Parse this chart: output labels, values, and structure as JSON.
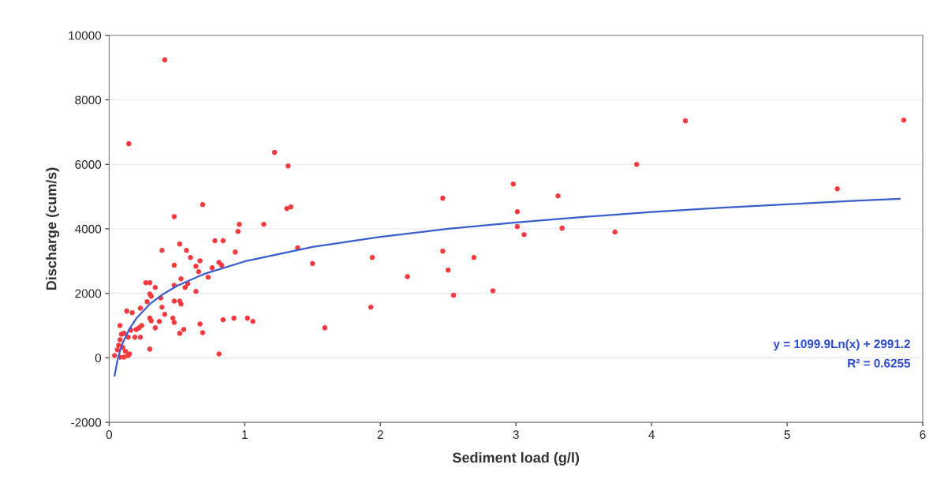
{
  "chart_data": {
    "type": "scatter",
    "xlabel": "Sediment load (g/l)",
    "ylabel": "Discharge (cum/s)",
    "xlim": [
      0,
      6
    ],
    "xticks": [
      0,
      1,
      2,
      3,
      4,
      5,
      6
    ],
    "ylim": [
      -2000,
      10000
    ],
    "yticks": [
      -2000,
      0,
      2000,
      4000,
      6000,
      8000,
      10000
    ],
    "grid": "y",
    "marker": "circle",
    "legend": false,
    "annotations": [
      "y = 1099.9Ln(x) + 2991.2",
      "R² = 0.6255"
    ],
    "series": [
      {
        "color": "#f23a3f",
        "x": [
          0.41,
          0.145,
          1.22,
          1.32,
          1.31,
          1.34,
          0.69,
          0.48,
          0.96,
          0.95,
          0.52,
          0.78,
          0.84,
          0.39,
          0.57,
          0.6,
          0.67,
          0.93,
          0.48,
          0.64,
          0.66,
          0.81,
          0.83,
          0.76,
          0.73,
          0.53,
          0.27,
          0.3,
          0.34,
          0.48,
          0.58,
          0.56,
          0.64,
          0.3,
          0.31,
          0.38,
          0.28,
          0.48,
          0.52,
          0.53,
          0.39,
          0.41,
          0.23,
          0.13,
          0.17,
          0.3,
          0.31,
          0.37,
          0.47,
          0.48,
          0.34,
          0.08,
          0.67,
          0.69,
          0.55,
          0.52,
          0.84,
          0.92,
          1.02,
          1.06,
          0.3,
          0.81,
          0.24,
          0.22,
          0.2,
          0.16,
          0.11,
          0.09,
          0.23,
          0.19,
          0.14,
          0.08,
          0.07,
          0.1,
          0.06,
          0.12,
          0.15,
          0.04,
          0.08,
          0.11,
          0.14,
          1.14,
          1.39,
          1.5,
          1.94,
          2.2,
          1.93,
          1.59,
          2.46,
          2.5,
          2.54,
          2.69,
          2.83,
          2.46,
          2.98,
          3.31,
          3.01,
          3.01,
          3.06,
          3.34,
          3.73,
          3.89,
          4.25,
          5.86,
          5.37
        ],
        "values": [
          9240,
          6640,
          6370,
          5950,
          4630,
          4680,
          4750,
          4380,
          4140,
          3920,
          3530,
          3630,
          3630,
          3330,
          3330,
          3110,
          3010,
          3280,
          2870,
          2840,
          2670,
          2960,
          2870,
          2790,
          2500,
          2450,
          2330,
          2330,
          2180,
          2250,
          2300,
          2180,
          2060,
          1980,
          1910,
          1860,
          1740,
          1760,
          1760,
          1670,
          1570,
          1350,
          1540,
          1450,
          1400,
          1230,
          1150,
          1130,
          1230,
          1100,
          930,
          1000,
          1050,
          780,
          880,
          760,
          1180,
          1230,
          1230,
          1130,
          270,
          120,
          1000,
          930,
          880,
          860,
          760,
          730,
          640,
          640,
          640,
          560,
          390,
          320,
          250,
          200,
          120,
          70,
          20,
          20,
          70,
          4140,
          3410,
          2920,
          3110,
          2520,
          1570,
          930,
          3310,
          2720,
          1940,
          3110,
          2080,
          4950,
          5390,
          5020,
          4530,
          4070,
          3820,
          4020,
          3900,
          6000,
          7350,
          7370,
          5240
        ]
      },
      {
        "type": "line",
        "color": "#3a5fcd",
        "marker": "none",
        "x": [
          0.04,
          0.06,
          0.08,
          0.1,
          0.15,
          0.2,
          0.3,
          0.4,
          0.5,
          0.7,
          1,
          1.5,
          2,
          2.5,
          3,
          3.5,
          4,
          4.5,
          5,
          5.5,
          5.83
        ],
        "values": [
          -550,
          -100,
          210,
          460,
          900,
          1220,
          1670,
          1980,
          2230,
          2600,
          2990,
          3440,
          3750,
          4000,
          4200,
          4370,
          4520,
          4650,
          4760,
          4870,
          4930
        ]
      }
    ]
  }
}
